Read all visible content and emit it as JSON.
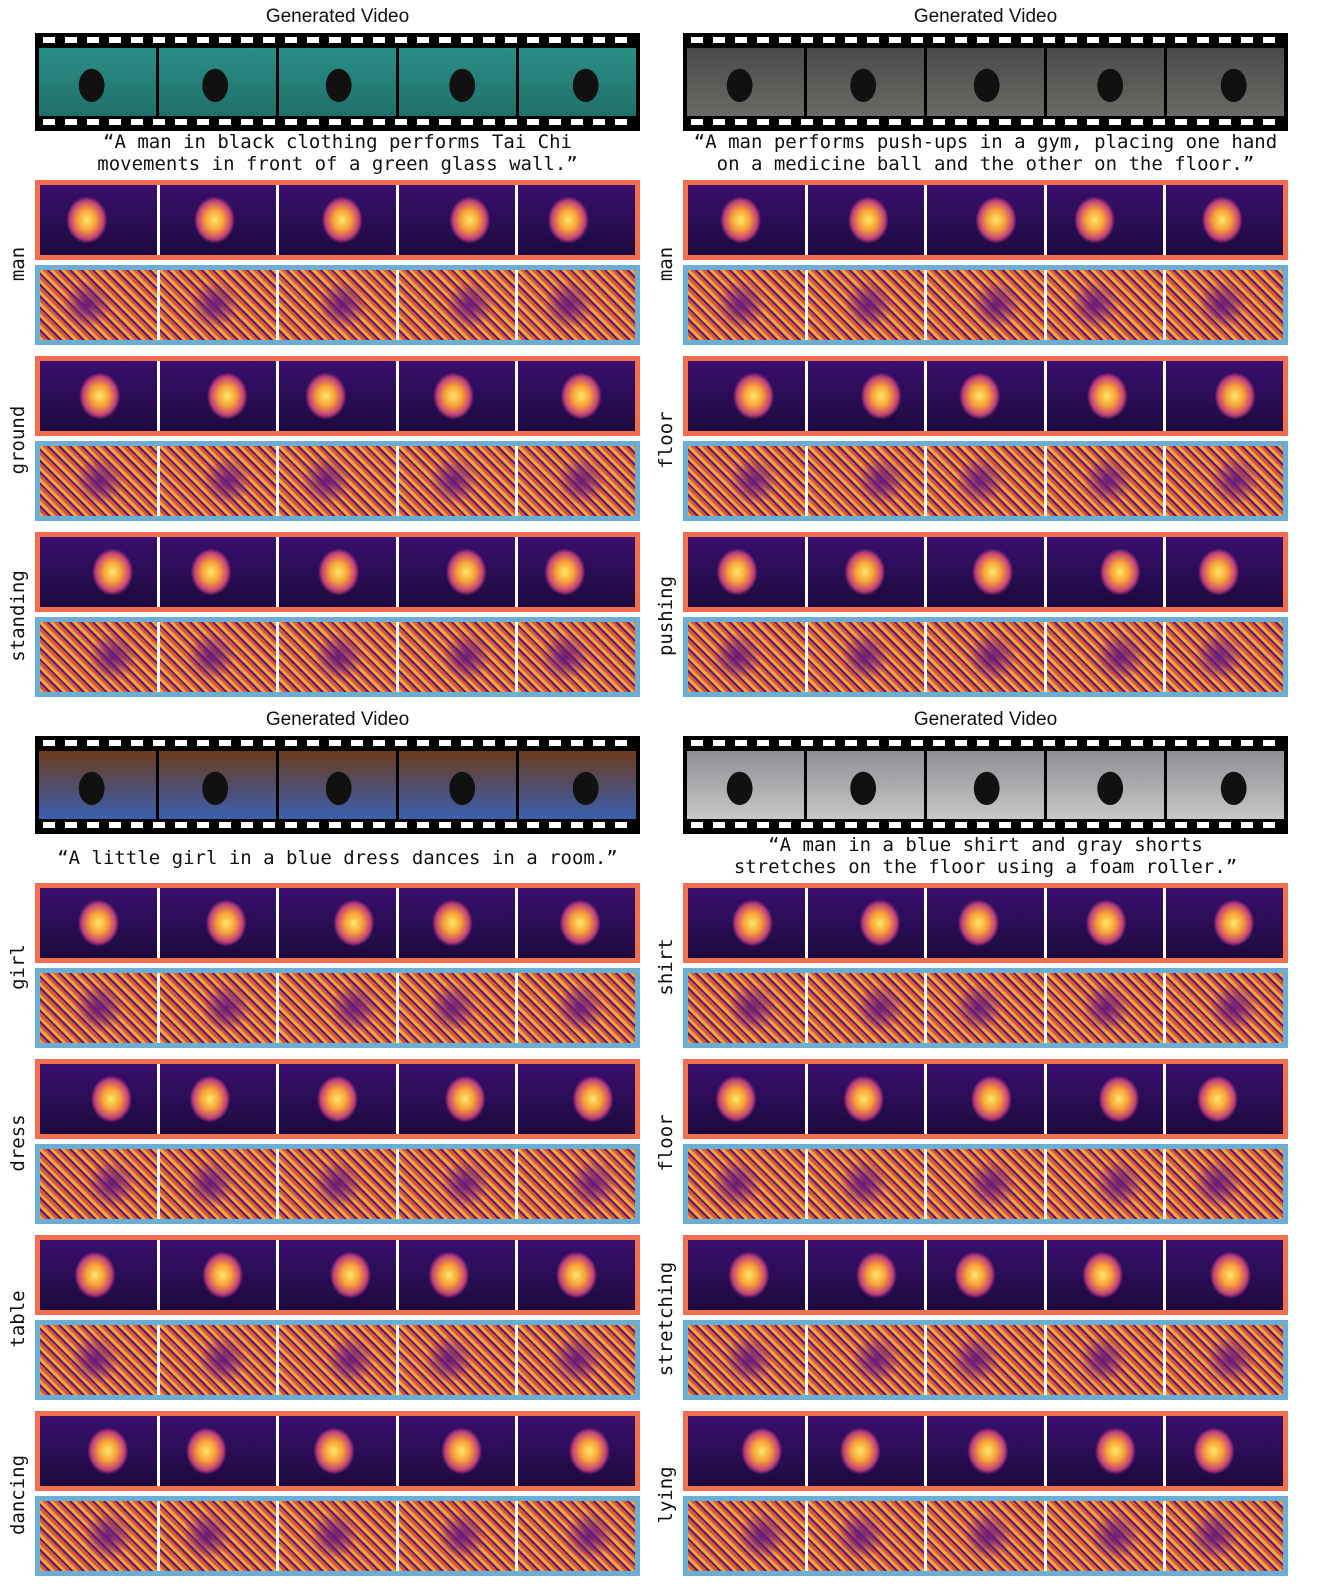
{
  "panels": [
    {
      "title": "Generated Video",
      "caption": [
        "“A man in black clothing performs Tai Chi",
        "movements in front of a green glass wall.”"
      ],
      "words": [
        "man",
        "ground",
        "standing"
      ]
    },
    {
      "title": "Generated Video",
      "caption": [
        "“A man performs push-ups in a gym, placing one hand",
        "on a medicine ball and the other on the floor.”"
      ],
      "words": [
        "man",
        "floor",
        "pushing"
      ]
    },
    {
      "title": "Generated Video",
      "caption": [
        "“A little girl in a blue dress dances in a room.”"
      ],
      "words": [
        "girl",
        "dress",
        "table",
        "dancing"
      ]
    },
    {
      "title": "Generated Video",
      "caption": [
        "“A man in a blue shirt and gray shorts",
        "stretches on the floor using a foam roller.”"
      ],
      "words": [
        "shirt",
        "floor",
        "stretching",
        "lying"
      ]
    }
  ]
}
